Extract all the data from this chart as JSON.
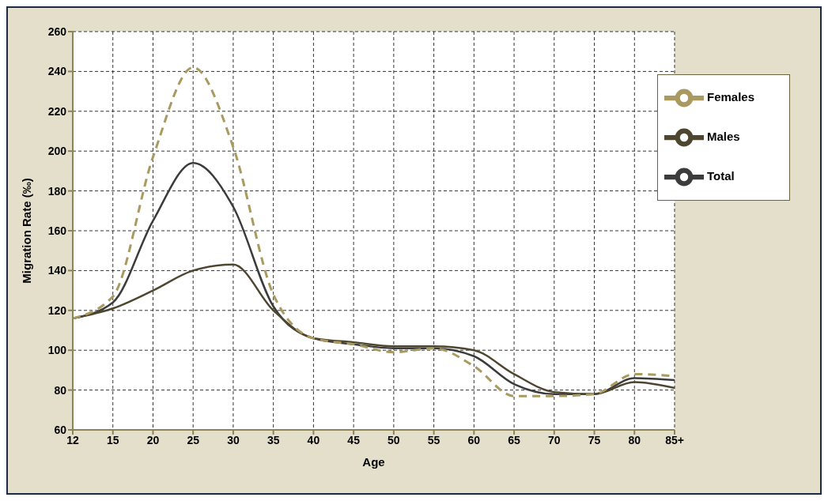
{
  "chart_data": {
    "type": "line",
    "xlabel": "Age",
    "ylabel": "Migration Rate (‰)",
    "categories": [
      "12",
      "15",
      "20",
      "25",
      "30",
      "35",
      "40",
      "45",
      "50",
      "55",
      "60",
      "65",
      "70",
      "75",
      "80",
      "85+"
    ],
    "series": [
      {
        "name": "Total",
        "color": "#3c3c3c",
        "values": [
          116,
          124,
          165,
          194,
          172,
          122,
          106,
          103,
          101,
          101,
          97,
          83,
          78,
          78,
          86,
          85
        ]
      },
      {
        "name": "Males",
        "color": "#4f4630",
        "values": [
          116,
          121,
          130,
          140,
          143,
          120,
          106,
          104,
          102,
          102,
          100,
          88,
          79,
          78,
          84,
          81
        ]
      },
      {
        "name": "Females",
        "color": "#a89a60",
        "line_style": "dashed",
        "values": [
          116,
          127,
          197,
          242,
          202,
          128,
          106,
          103,
          99,
          101,
          92,
          77,
          77,
          78,
          88,
          87
        ]
      }
    ],
    "ylim": [
      60,
      260
    ],
    "yticks": [
      60,
      80,
      100,
      120,
      140,
      160,
      180,
      200,
      220,
      240,
      260
    ],
    "grid": true,
    "legend": "top right",
    "line_style": "solid"
  }
}
